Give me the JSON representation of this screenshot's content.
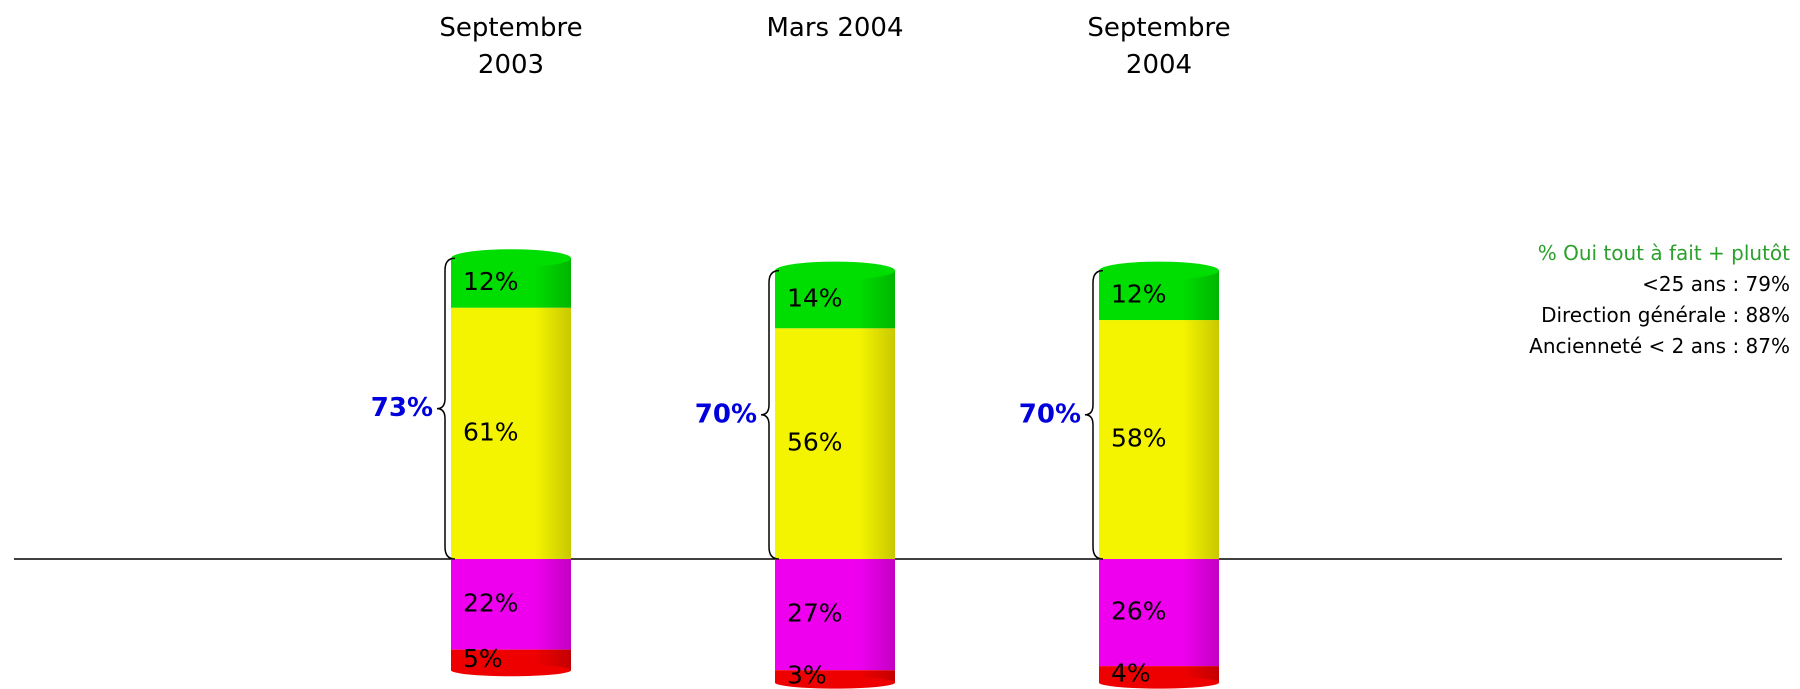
{
  "chart_data": {
    "type": "bar",
    "categories": [
      "Septembre 2003",
      "Mars 2004",
      "Septembre 2004"
    ],
    "series": [
      {
        "color": "#f4f400",
        "values": [
          61,
          56,
          58
        ],
        "value_labels": [
          "61%",
          "56%",
          "58%"
        ]
      },
      {
        "color": "#00dd00",
        "values": [
          12,
          14,
          12
        ],
        "value_labels": [
          "12%",
          "14%",
          "12%"
        ]
      },
      {
        "color": "#ee00ee",
        "values": [
          22,
          27,
          26
        ],
        "value_labels": [
          "22%",
          "27%",
          "26%"
        ]
      },
      {
        "color": "#ee0000",
        "values": [
          5,
          3,
          4
        ],
        "value_labels": [
          "5%",
          "3%",
          "4%"
        ]
      }
    ],
    "totals": {
      "color": "#0000dd",
      "values": [
        73,
        70,
        70
      ],
      "value_labels": [
        "73%",
        "70%",
        "70%"
      ]
    },
    "note": {
      "title": "% Oui tout à fait + plutôt",
      "title_color": "#2ca02c",
      "lines": [
        "<25 ans : 79%",
        "Direction générale : 88%",
        "Ancienneté < 2 ans : 87%"
      ]
    }
  }
}
